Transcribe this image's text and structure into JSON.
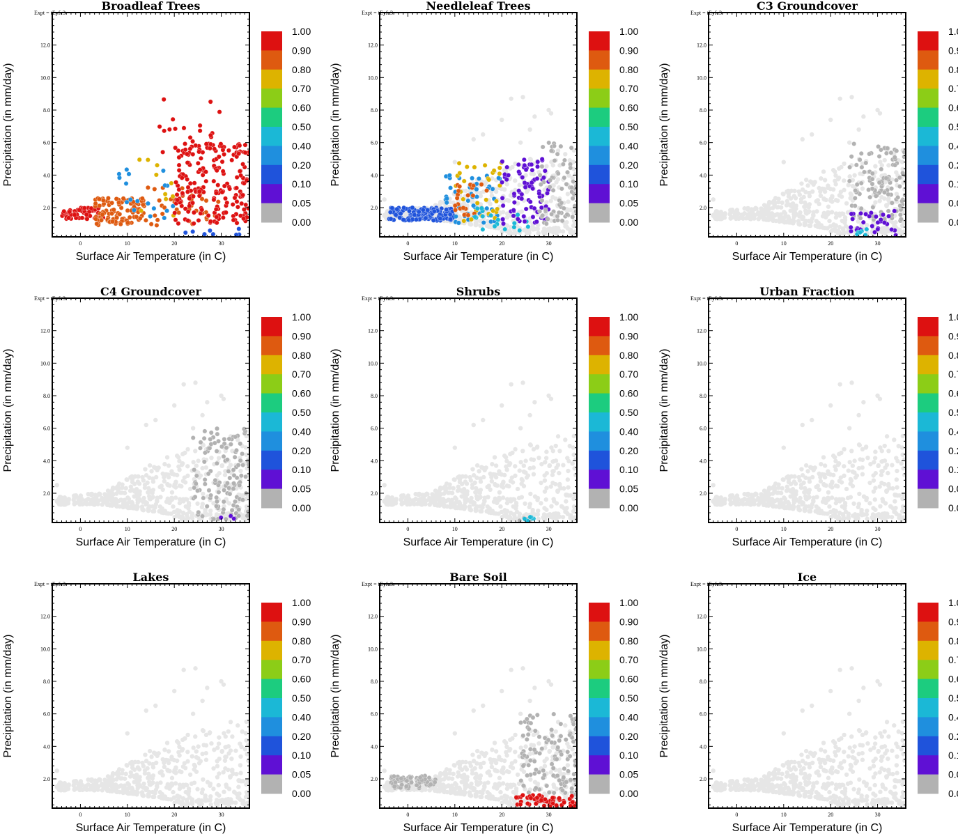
{
  "figure": {
    "expt_label": "Expt = tEyfe3"
  },
  "colorbar": {
    "labels": [
      "1.00",
      "0.90",
      "0.80",
      "0.70",
      "0.60",
      "0.50",
      "0.40",
      "0.20",
      "0.10",
      "0.05",
      "0.00"
    ],
    "colors": [
      "#dd1111",
      "#de5a10",
      "#ddb300",
      "#8ccd17",
      "#1ccc7f",
      "#1bb8d6",
      "#1f8fde",
      "#1f53db",
      "#5f10d4",
      "#b2b2b2"
    ],
    "bins": [
      ">0.90",
      "0.80-0.90",
      "0.70-0.80",
      "0.60-0.70",
      "0.50-0.60",
      "0.40-0.50",
      "0.20-0.40",
      "0.10-0.20",
      "0.05-0.10",
      "<0.05"
    ]
  },
  "background_point_color": "#e6e6e6",
  "chart_data": [
    {
      "type": "scatter",
      "title": "Broadleaf Trees",
      "xlabel": "Surface Air Temperature (in C)",
      "ylabel": "Precipitation (in mm/day)",
      "xlim": [
        -6,
        36
      ],
      "ylim": [
        0.2,
        14
      ],
      "xticks": [
        "0",
        "10",
        "20",
        "30"
      ],
      "yticks": [
        "2.0",
        "4.0",
        "6.0",
        "8.0",
        "10.0",
        "12.0"
      ],
      "clusters": [
        {
          "x_range": [
            -4,
            5
          ],
          "y_range": [
            1.3,
            2.0
          ],
          "color": "#dd1111",
          "count": 60
        },
        {
          "x_range": [
            3,
            14
          ],
          "y_range": [
            0.9,
            2.6
          ],
          "color": "#de5a10",
          "count": 110
        },
        {
          "x_range": [
            14,
            30
          ],
          "y_range": [
            0.9,
            3.3
          ],
          "color": "#de5a10",
          "count": 40
        },
        {
          "x_range": [
            8,
            20
          ],
          "y_range": [
            1.0,
            4.5
          ],
          "color": "#1f8fde",
          "count": 18
        },
        {
          "x_range": [
            10,
            22
          ],
          "y_range": [
            1.2,
            5.0
          ],
          "color": "#ddb300",
          "count": 10
        },
        {
          "x_range": [
            20,
            36
          ],
          "y_range": [
            1.0,
            6.0
          ],
          "color": "#dd1111",
          "count": 200
        },
        {
          "x_range": [
            16,
            30
          ],
          "y_range": [
            5.0,
            8.8
          ],
          "color": "#dd1111",
          "count": 22
        },
        {
          "x_range": [
            22,
            34
          ],
          "y_range": [
            0.3,
            0.8
          ],
          "color": "#1f53db",
          "count": 8
        }
      ],
      "background": false
    },
    {
      "type": "scatter",
      "title": "Needleleaf Trees",
      "xlabel": "Surface Air Temperature (in C)",
      "ylabel": "Precipitation (in mm/day)",
      "xlim": [
        -6,
        36
      ],
      "ylim": [
        0.2,
        14
      ],
      "xticks": [
        "0",
        "10",
        "20",
        "30"
      ],
      "yticks": [
        "2.0",
        "4.0",
        "6.0",
        "8.0",
        "10.0",
        "12.0"
      ],
      "clusters": [
        {
          "x_range": [
            -4,
            10
          ],
          "y_range": [
            1.2,
            2.0
          ],
          "color": "#1f53db",
          "count": 140
        },
        {
          "x_range": [
            8,
            20
          ],
          "y_range": [
            1.0,
            4.0
          ],
          "color": "#1f8fde",
          "count": 50
        },
        {
          "x_range": [
            10,
            20
          ],
          "y_range": [
            1.0,
            4.8
          ],
          "color": "#ddb300",
          "count": 30
        },
        {
          "x_range": [
            10,
            18
          ],
          "y_range": [
            1.5,
            3.5
          ],
          "color": "#de5a10",
          "count": 25
        },
        {
          "x_range": [
            14,
            26
          ],
          "y_range": [
            0.5,
            2.0
          ],
          "color": "#1bb8d6",
          "count": 20
        },
        {
          "x_range": [
            20,
            30
          ],
          "y_range": [
            1.0,
            5.0
          ],
          "color": "#5f10d4",
          "count": 80
        },
        {
          "x_range": [
            28,
            36
          ],
          "y_range": [
            1.0,
            6.0
          ],
          "color": "#b2b2b2",
          "count": 70
        }
      ],
      "background": true
    },
    {
      "type": "scatter",
      "title": "C3 Groundcover",
      "xlabel": "Surface Air Temperature (in C)",
      "ylabel": "Precipitation (in mm/day)",
      "xlim": [
        -6,
        36
      ],
      "ylim": [
        0.2,
        14
      ],
      "xticks": [
        "0",
        "10",
        "20",
        "30"
      ],
      "yticks": [
        "2.0",
        "4.0",
        "6.0",
        "8.0",
        "10.0",
        "12.0"
      ],
      "clusters": [
        {
          "x_range": [
            24,
            36
          ],
          "y_range": [
            1.0,
            6.0
          ],
          "color": "#b2b2b2",
          "count": 110
        },
        {
          "x_range": [
            24,
            34
          ],
          "y_range": [
            0.3,
            1.8
          ],
          "color": "#5f10d4",
          "count": 30
        },
        {
          "x_range": [
            25,
            28
          ],
          "y_range": [
            0.3,
            0.8
          ],
          "color": "#1bb8d6",
          "count": 6
        }
      ],
      "background": true
    },
    {
      "type": "scatter",
      "title": "C4 Groundcover",
      "xlabel": "Surface Air Temperature (in C)",
      "ylabel": "Precipitation (in mm/day)",
      "xlim": [
        -6,
        36
      ],
      "ylim": [
        0.2,
        14
      ],
      "xticks": [
        "0",
        "10",
        "20",
        "30"
      ],
      "yticks": [
        "2.0",
        "4.0",
        "6.0",
        "8.0",
        "10.0",
        "12.0"
      ],
      "clusters": [
        {
          "x_range": [
            24,
            36
          ],
          "y_range": [
            0.4,
            6.0
          ],
          "color": "#b2b2b2",
          "count": 120
        },
        {
          "x_range": [
            26,
            33
          ],
          "y_range": [
            0.3,
            0.7
          ],
          "color": "#5f10d4",
          "count": 3
        }
      ],
      "background": true
    },
    {
      "type": "scatter",
      "title": "Shrubs",
      "xlabel": "Surface Air Temperature (in C)",
      "ylabel": "Precipitation (in mm/day)",
      "xlim": [
        -6,
        36
      ],
      "ylim": [
        0.2,
        14
      ],
      "xticks": [
        "0",
        "10",
        "20",
        "30"
      ],
      "yticks": [
        "2.0",
        "4.0",
        "6.0",
        "8.0",
        "10.0",
        "12.0"
      ],
      "clusters": [
        {
          "x_range": [
            23,
            27
          ],
          "y_range": [
            0.3,
            0.7
          ],
          "color": "#b2b2b2",
          "count": 6
        },
        {
          "x_range": [
            24,
            27
          ],
          "y_range": [
            0.3,
            0.6
          ],
          "color": "#1bb8d6",
          "count": 6
        }
      ],
      "background": true
    },
    {
      "type": "scatter",
      "title": "Urban Fraction",
      "xlabel": "Surface Air Temperature (in C)",
      "ylabel": "Precipitation (in mm/day)",
      "xlim": [
        -6,
        36
      ],
      "ylim": [
        0.2,
        14
      ],
      "xticks": [
        "0",
        "10",
        "20",
        "30"
      ],
      "yticks": [
        "2.0",
        "4.0",
        "6.0",
        "8.0",
        "10.0",
        "12.0"
      ],
      "clusters": [],
      "background": true
    },
    {
      "type": "scatter",
      "title": "Lakes",
      "xlabel": "Surface Air Temperature (in C)",
      "ylabel": "Precipitation (in mm/day)",
      "xlim": [
        -6,
        36
      ],
      "ylim": [
        0.2,
        14
      ],
      "xticks": [
        "0",
        "10",
        "20",
        "30"
      ],
      "yticks": [
        "2.0",
        "4.0",
        "6.0",
        "8.0",
        "10.0",
        "12.0"
      ],
      "clusters": [],
      "background": true
    },
    {
      "type": "scatter",
      "title": "Bare Soil",
      "xlabel": "Surface Air Temperature (in C)",
      "ylabel": "Precipitation (in mm/day)",
      "xlim": [
        -6,
        36
      ],
      "ylim": [
        0.2,
        14
      ],
      "xticks": [
        "0",
        "10",
        "20",
        "30"
      ],
      "yticks": [
        "2.0",
        "4.0",
        "6.0",
        "8.0",
        "10.0",
        "12.0"
      ],
      "clusters": [
        {
          "x_range": [
            -4,
            6
          ],
          "y_range": [
            1.4,
            2.2
          ],
          "color": "#b2b2b2",
          "count": 70
        },
        {
          "x_range": [
            24,
            36
          ],
          "y_range": [
            1.0,
            6.0
          ],
          "color": "#b2b2b2",
          "count": 110
        },
        {
          "x_range": [
            23,
            36
          ],
          "y_range": [
            0.3,
            1.0
          ],
          "color": "#dd1111",
          "count": 60
        }
      ],
      "background": true
    },
    {
      "type": "scatter",
      "title": "Ice",
      "xlabel": "Surface Air Temperature (in C)",
      "ylabel": "Precipitation (in mm/day)",
      "xlim": [
        -6,
        36
      ],
      "ylim": [
        0.2,
        14
      ],
      "xticks": [
        "0",
        "10",
        "20",
        "30"
      ],
      "yticks": [
        "2.0",
        "4.0",
        "6.0",
        "8.0",
        "10.0",
        "12.0"
      ],
      "clusters": [],
      "background": true
    }
  ]
}
